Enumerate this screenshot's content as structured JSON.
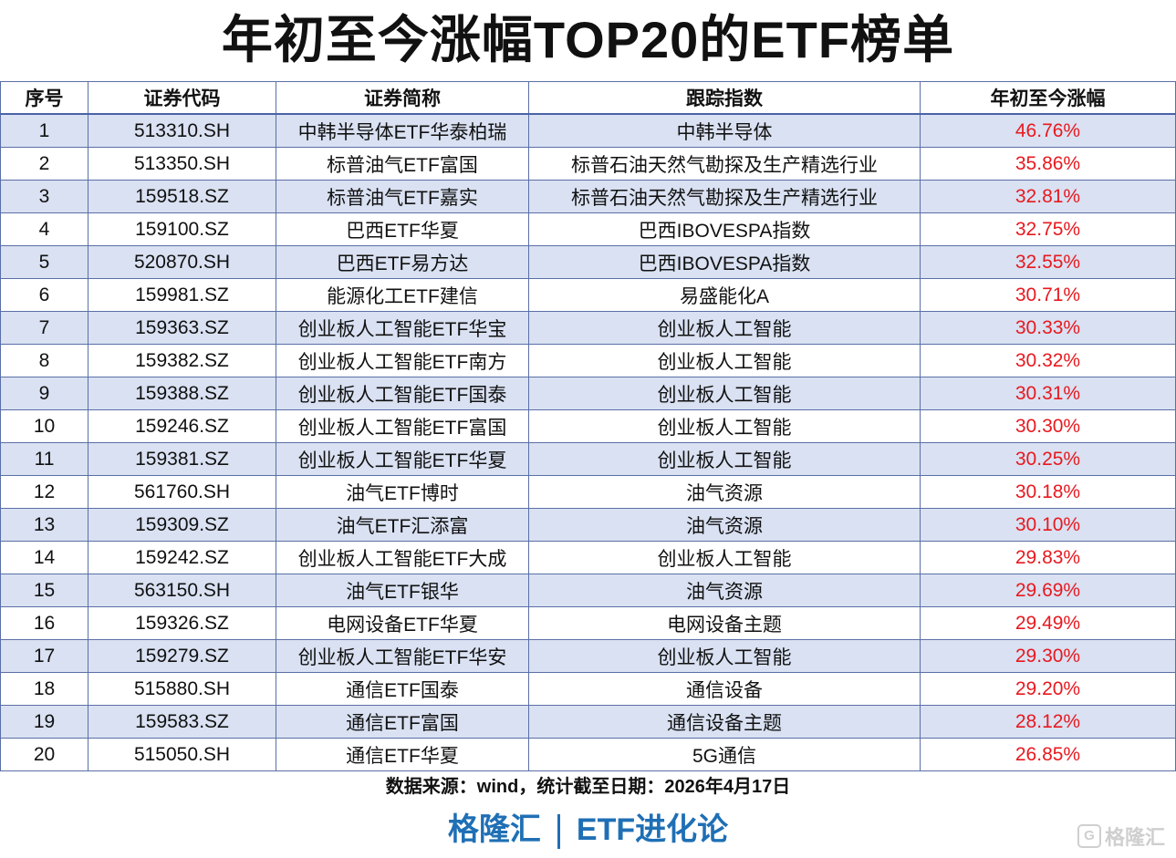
{
  "title": "年初至今涨幅TOP20的ETF榜单",
  "table": {
    "headers": [
      "序号",
      "证券代码",
      "证券简称",
      "跟踪指数",
      "年初至今涨幅"
    ],
    "rows": [
      [
        "1",
        "513310.SH",
        "中韩半导体ETF华泰柏瑞",
        "中韩半导体",
        "46.76%"
      ],
      [
        "2",
        "513350.SH",
        "标普油气ETF富国",
        "标普石油天然气勘探及生产精选行业",
        "35.86%"
      ],
      [
        "3",
        "159518.SZ",
        "标普油气ETF嘉实",
        "标普石油天然气勘探及生产精选行业",
        "32.81%"
      ],
      [
        "4",
        "159100.SZ",
        "巴西ETF华夏",
        "巴西IBOVESPA指数",
        "32.75%"
      ],
      [
        "5",
        "520870.SH",
        "巴西ETF易方达",
        "巴西IBOVESPA指数",
        "32.55%"
      ],
      [
        "6",
        "159981.SZ",
        "能源化工ETF建信",
        "易盛能化A",
        "30.71%"
      ],
      [
        "7",
        "159363.SZ",
        "创业板人工智能ETF华宝",
        "创业板人工智能",
        "30.33%"
      ],
      [
        "8",
        "159382.SZ",
        "创业板人工智能ETF南方",
        "创业板人工智能",
        "30.32%"
      ],
      [
        "9",
        "159388.SZ",
        "创业板人工智能ETF国泰",
        "创业板人工智能",
        "30.31%"
      ],
      [
        "10",
        "159246.SZ",
        "创业板人工智能ETF富国",
        "创业板人工智能",
        "30.30%"
      ],
      [
        "11",
        "159381.SZ",
        "创业板人工智能ETF华夏",
        "创业板人工智能",
        "30.25%"
      ],
      [
        "12",
        "561760.SH",
        "油气ETF博时",
        "油气资源",
        "30.18%"
      ],
      [
        "13",
        "159309.SZ",
        "油气ETF汇添富",
        "油气资源",
        "30.10%"
      ],
      [
        "14",
        "159242.SZ",
        "创业板人工智能ETF大成",
        "创业板人工智能",
        "29.83%"
      ],
      [
        "15",
        "563150.SH",
        "油气ETF银华",
        "油气资源",
        "29.69%"
      ],
      [
        "16",
        "159326.SZ",
        "电网设备ETF华夏",
        "电网设备主题",
        "29.49%"
      ],
      [
        "17",
        "159279.SZ",
        "创业板人工智能ETF华安",
        "创业板人工智能",
        "29.30%"
      ],
      [
        "18",
        "515880.SH",
        "通信ETF国泰",
        "通信设备",
        "29.20%"
      ],
      [
        "19",
        "159583.SZ",
        "通信ETF富国",
        "通信设备主题",
        "28.12%"
      ],
      [
        "20",
        "515050.SH",
        "通信ETF华夏",
        "5G通信",
        "26.85%"
      ]
    ]
  },
  "source": "数据来源：wind，统计截至日期：2026年4月17日",
  "footer": {
    "brand": "格隆汇",
    "column": "ETF进化论"
  },
  "watermark": {
    "icon": "glh-logo-icon",
    "text": "格隆汇"
  },
  "colors": {
    "band": "#d9e1f2",
    "gain": "#e8191f",
    "footer": "#1f6fb5",
    "border": "#5a6fa6"
  }
}
